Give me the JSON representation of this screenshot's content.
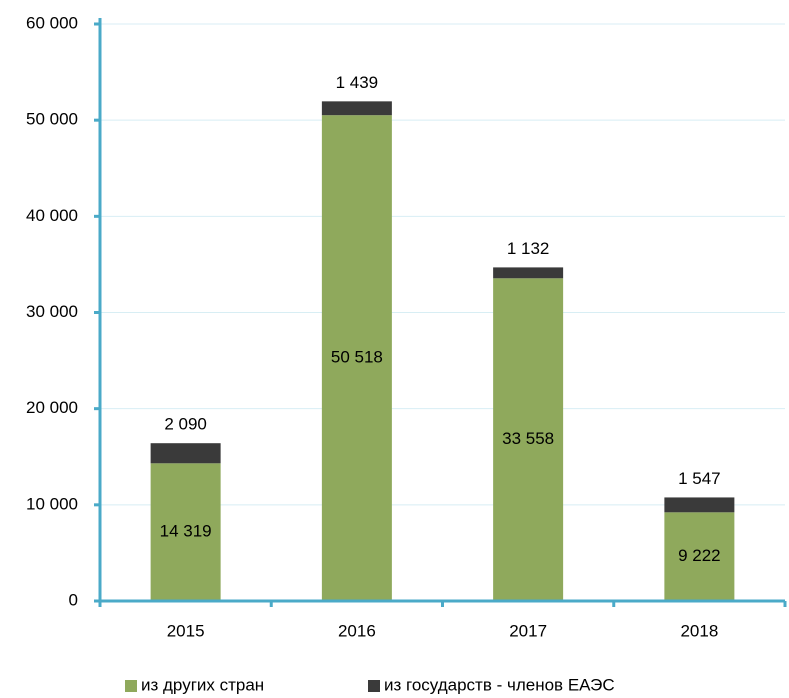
{
  "chart_data": {
    "type": "stacked_bar",
    "categories": [
      "2015",
      "2016",
      "2017",
      "2018"
    ],
    "series": [
      {
        "name": "из других стран",
        "color": "#8fa95c",
        "values": [
          14319,
          50518,
          33558,
          9222
        ],
        "value_labels": [
          "14 319",
          "50 518",
          "33 558",
          "9 222"
        ]
      },
      {
        "name": "из государств - членов ЕАЭС",
        "color": "#3a3a3a",
        "values": [
          2090,
          1439,
          1132,
          1547
        ],
        "value_labels": [
          "2 090",
          "1 439",
          "1 132",
          "1 547"
        ]
      }
    ],
    "ylim": [
      0,
      60000
    ],
    "yticks": [
      0,
      {
        "value": 10000,
        "label": "10 000"
      },
      {
        "value": 20000,
        "label": "20 000"
      },
      {
        "value": 30000,
        "label": "30 000"
      },
      {
        "value": 40000,
        "label": "40 000"
      },
      {
        "value": 50000,
        "label": "50 000"
      },
      {
        "value": 60000,
        "label": "60 000"
      }
    ],
    "grid": true,
    "legend": "bottom"
  }
}
